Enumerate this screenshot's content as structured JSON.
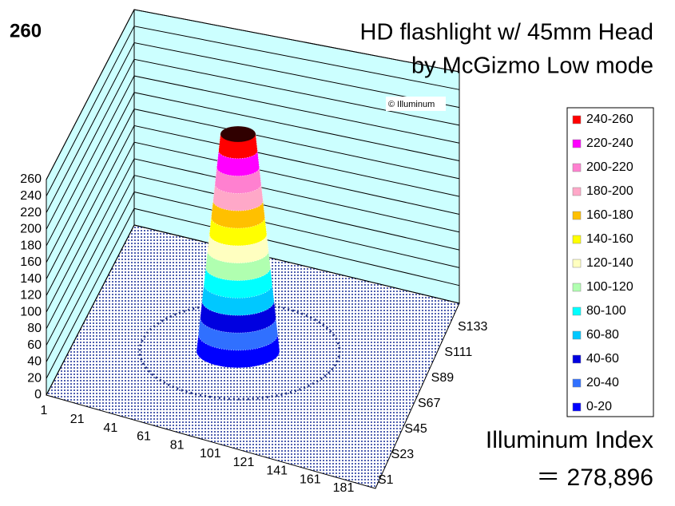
{
  "chart_data": {
    "type": "surface3d",
    "badge": "260",
    "title": [
      "HD flashlight w/ 45mm Head",
      "by McGizmo  Low mode"
    ],
    "watermark": "© Illuminum",
    "zlim": [
      0,
      260
    ],
    "zticks": [
      0,
      20,
      40,
      60,
      80,
      100,
      120,
      140,
      160,
      180,
      200,
      220,
      240,
      260
    ],
    "x_categories": [
      "1",
      "21",
      "41",
      "61",
      "81",
      "101",
      "121",
      "141",
      "161",
      "181"
    ],
    "y_categories": [
      "S1",
      "S23",
      "S45",
      "S67",
      "S89",
      "S111",
      "S133"
    ],
    "series": [
      {
        "name": "240-260",
        "color": "#ff0000"
      },
      {
        "name": "220-240",
        "color": "#ff00ff"
      },
      {
        "name": "200-220",
        "color": "#ff80d0"
      },
      {
        "name": "180-200",
        "color": "#ffa8c8"
      },
      {
        "name": "160-180",
        "color": "#ffc000"
      },
      {
        "name": "140-160",
        "color": "#ffff00"
      },
      {
        "name": "120-140",
        "color": "#ffffc0"
      },
      {
        "name": "100-120",
        "color": "#b0ffb0"
      },
      {
        "name": "80-100",
        "color": "#00ffff"
      },
      {
        "name": "60-80",
        "color": "#00c8ff"
      },
      {
        "name": "40-60",
        "color": "#0000e0"
      },
      {
        "name": "20-40",
        "color": "#3070ff"
      },
      {
        "name": "0-20",
        "color": "#0000ff"
      }
    ],
    "index_label": "Illuminum Index",
    "index_value": "＝ 278,896"
  }
}
